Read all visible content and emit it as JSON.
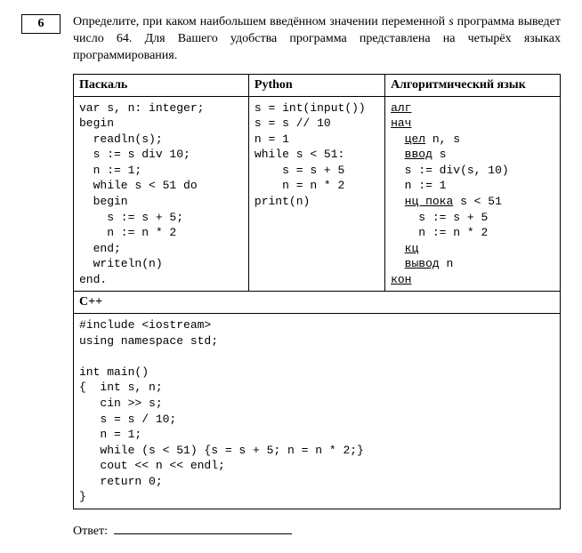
{
  "question": {
    "number": "6",
    "text_before_var": "Определите, при каком наибольшем введённом значении переменной ",
    "var": "s",
    "text_after_var": " программа выведет число 64. Для Вашего удобства программа представлена на четырёх языках программирования."
  },
  "table": {
    "headers": [
      "Паскаль",
      "Python",
      "Алгоритмический язык"
    ],
    "col_widths": [
      "36%",
      "28%",
      "36%"
    ],
    "pascal_code": "var s, n: integer;\nbegin\n  readln(s);\n  s := s div 10;\n  n := 1;\n  while s < 51 do\n  begin\n    s := s + 5;\n    n := n * 2\n  end;\n  writeln(n)\nend.",
    "python_code": "s = int(input())\ns = s // 10\nn = 1\nwhile s < 51:\n    s = s + 5\n    n = n * 2\nprint(n)",
    "alg_lines": [
      [
        {
          "t": "алг",
          "kw": true
        }
      ],
      [
        {
          "t": "нач",
          "kw": true
        }
      ],
      [
        {
          "t": "  "
        },
        {
          "t": "цел",
          "kw": true
        },
        {
          "t": " n, s"
        }
      ],
      [
        {
          "t": "  "
        },
        {
          "t": "ввод",
          "kw": true
        },
        {
          "t": " s"
        }
      ],
      [
        {
          "t": "  s := div(s, 10)"
        }
      ],
      [
        {
          "t": "  n := 1"
        }
      ],
      [
        {
          "t": "  "
        },
        {
          "t": "нц пока",
          "kw": true
        },
        {
          "t": " s < 51"
        }
      ],
      [
        {
          "t": "    s := s + 5"
        }
      ],
      [
        {
          "t": "    n := n * 2"
        }
      ],
      [
        {
          "t": "  "
        },
        {
          "t": "кц",
          "kw": true
        }
      ],
      [
        {
          "t": "  "
        },
        {
          "t": "вывод",
          "kw": true
        },
        {
          "t": " n"
        }
      ],
      [
        {
          "t": "кон",
          "kw": true
        }
      ]
    ],
    "cpp_header": "C++",
    "cpp_code": "#include <iostream>\nusing namespace std;\n\nint main()\n{  int s, n;\n   cin >> s;\n   s = s / 10;\n   n = 1;\n   while (s < 51) {s = s + 5; n = n * 2;}\n   cout << n << endl;\n   return 0;\n}"
  },
  "answer_label": "Ответ:",
  "style": {
    "font_body": "Times New Roman",
    "font_code": "Courier New",
    "fontsize_body_pt": 11,
    "fontsize_code_pt": 10,
    "border_color": "#000000",
    "background_color": "#ffffff",
    "text_color": "#000000"
  }
}
